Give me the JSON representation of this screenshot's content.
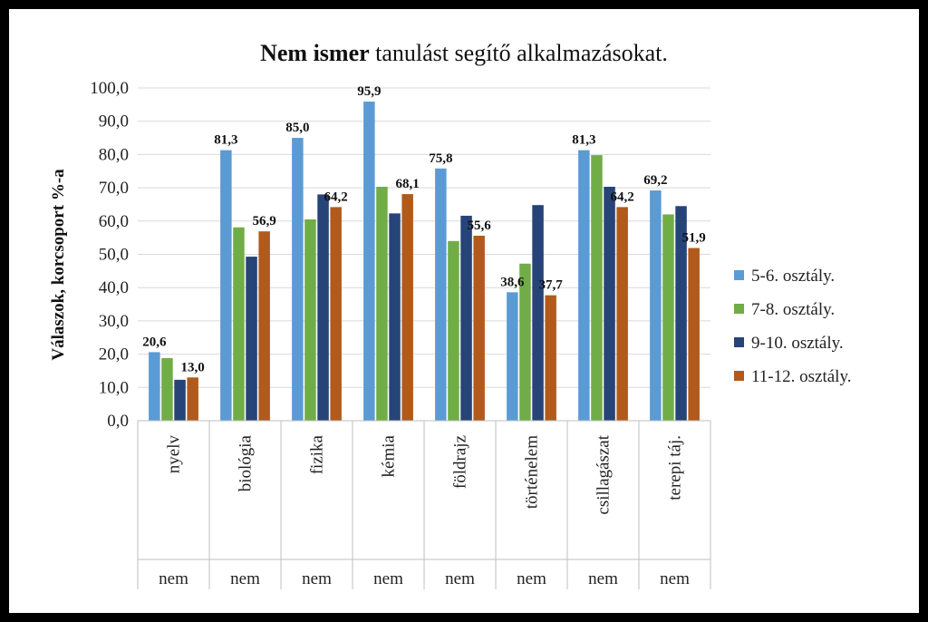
{
  "chart_data": {
    "type": "bar",
    "title_bold": "Nem ismer",
    "title_rest": " tanulást segítő alkalmazásokat.",
    "ylabel": "Válaszok, korcsoport %-a",
    "ylim": [
      0,
      100
    ],
    "yticks": [
      "0,0",
      "10,0",
      "20,0",
      "30,0",
      "40,0",
      "50,0",
      "60,0",
      "70,0",
      "80,0",
      "90,0",
      "100,0"
    ],
    "categories": [
      "nyelv",
      "biológia",
      "fizika",
      "kémia",
      "földrajz",
      "történelem",
      "csillagászat",
      "terepi táj."
    ],
    "group_labels": [
      "nem",
      "nem",
      "nem",
      "nem",
      "nem",
      "nem",
      "nem",
      "nem"
    ],
    "series": [
      {
        "name": "5-6. osztály.",
        "color": "#5b9bd5",
        "values": [
          20.6,
          81.3,
          85.0,
          95.9,
          75.8,
          38.6,
          81.3,
          69.2
        ]
      },
      {
        "name": "7-8. osztály.",
        "color": "#70ad47",
        "values": [
          18.8,
          58.1,
          60.5,
          70.3,
          54.0,
          47.2,
          79.8,
          62.0
        ]
      },
      {
        "name": "9-10. osztály.",
        "color": "#264478",
        "values": [
          12.3,
          49.3,
          68.0,
          62.3,
          61.6,
          64.8,
          70.3,
          64.5
        ]
      },
      {
        "name": "11-12. osztály.",
        "color": "#b15a1c",
        "values": [
          13.0,
          56.9,
          64.2,
          68.1,
          55.6,
          37.7,
          64.2,
          51.9
        ]
      }
    ],
    "data_labels": [
      {
        "series": 0,
        "index": 0,
        "text": "20,6"
      },
      {
        "series": 3,
        "index": 0,
        "text": "13,0"
      },
      {
        "series": 0,
        "index": 1,
        "text": "81,3"
      },
      {
        "series": 3,
        "index": 1,
        "text": "56,9"
      },
      {
        "series": 0,
        "index": 2,
        "text": "85,0"
      },
      {
        "series": 3,
        "index": 2,
        "text": "64,2"
      },
      {
        "series": 0,
        "index": 3,
        "text": "95,9"
      },
      {
        "series": 3,
        "index": 3,
        "text": "68,1"
      },
      {
        "series": 0,
        "index": 4,
        "text": "75,8"
      },
      {
        "series": 3,
        "index": 4,
        "text": "55,6"
      },
      {
        "series": 0,
        "index": 5,
        "text": "38,6"
      },
      {
        "series": 3,
        "index": 5,
        "text": "37,7"
      },
      {
        "series": 0,
        "index": 6,
        "text": "81,3"
      },
      {
        "series": 3,
        "index": 6,
        "text": "64,2"
      },
      {
        "series": 0,
        "index": 7,
        "text": "69,2"
      },
      {
        "series": 3,
        "index": 7,
        "text": "51,9"
      }
    ],
    "grid": true,
    "legend_position": "right"
  }
}
